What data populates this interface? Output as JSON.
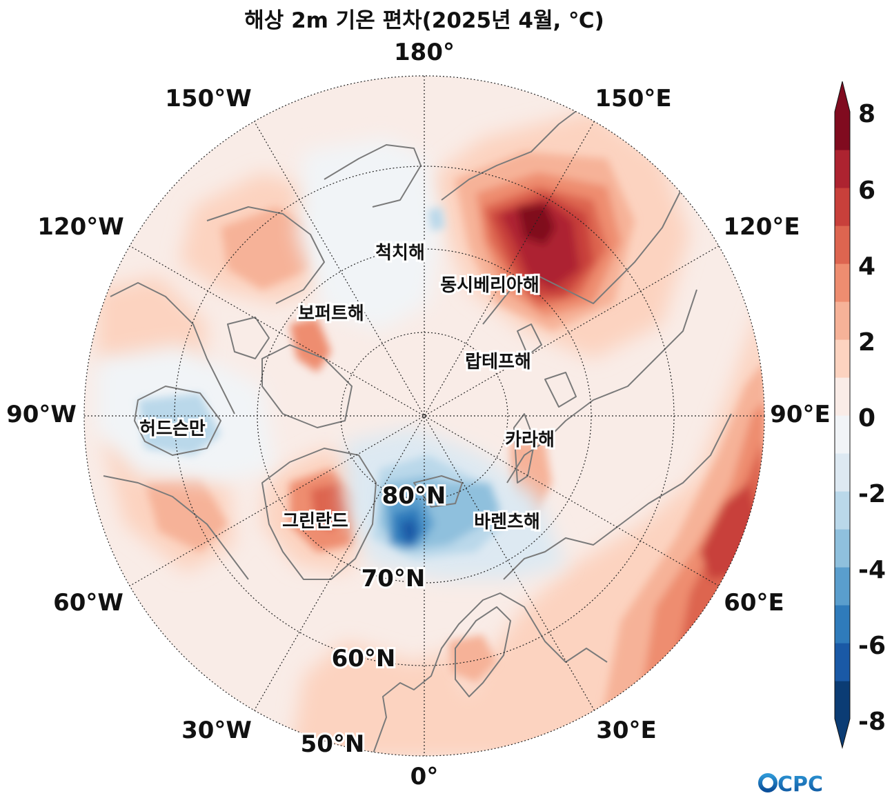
{
  "title": "해상 2m 기온 편차(2025년 4월, ℃)",
  "longitude_labels": {
    "lon_180": "180°",
    "lon_150w": "150°W",
    "lon_150e": "150°E",
    "lon_120w": "120°W",
    "lon_120e": "120°E",
    "lon_90w": "90°W",
    "lon_90e": "90°E",
    "lon_60w": "60°W",
    "lon_60e": "60°E",
    "lon_30w": "30°W",
    "lon_30e": "30°E",
    "lon_0": "0°"
  },
  "latitude_labels": {
    "lat_80": "80°N",
    "lat_70": "70°N",
    "lat_60": "60°N",
    "lat_50": "50°N"
  },
  "regions": {
    "chukchi": "척치해",
    "east_siberian": "동시베리아해",
    "beaufort": "보퍼트해",
    "laptev": "랍테프해",
    "hudson": "허드슨만",
    "kara": "카라해",
    "greenland": "그린란드",
    "barents": "바렌츠해"
  },
  "colorbar": {
    "ticks": [
      "8",
      "6",
      "4",
      "2",
      "0",
      "-2",
      "-4",
      "-6",
      "-8"
    ],
    "levels_min": -8,
    "levels_max": 8,
    "colors": [
      "#0b3c74",
      "#1a59a6",
      "#2f7bbb",
      "#5a9ecd",
      "#8fc0dd",
      "#bad8ea",
      "#dde9f2",
      "#f1f4f7",
      "#f9ece7",
      "#fcd3c0",
      "#f6b298",
      "#ee8d70",
      "#dd6550",
      "#c8403b",
      "#ad2330",
      "#800b1f"
    ]
  },
  "logo": "CPC",
  "chart_data": {
    "type": "heatmap",
    "projection": "north polar stereographic",
    "variable": "2m temperature anomaly",
    "unit": "℃",
    "color_range": [
      -8,
      8
    ],
    "latitude_circles": [
      80,
      70,
      60,
      50
    ],
    "longitude_lines": [
      0,
      30,
      60,
      90,
      120,
      150,
      180,
      -150,
      -120,
      -90,
      -60,
      -30
    ],
    "anomaly_features": [
      {
        "location": "East Siberian Sea / NE Siberia (~140°E, 70°N)",
        "value": 7.5
      },
      {
        "location": "Siberian coast (~125°E, 65°N)",
        "value": 5
      },
      {
        "location": "West Siberia / Urals (~70°E, 55°N)",
        "value": 5.5
      },
      {
        "location": "NE Europe (~50°E, 55°N)",
        "value": 3.5
      },
      {
        "location": "Alaska / W Canada (~135°W, 62°N)",
        "value": 2.5
      },
      {
        "location": "NE Greenland (~30°W, 75°N)",
        "value": 4.5
      },
      {
        "location": "Beaufort Sea coast (~120°W, 72°N)",
        "value": 4
      },
      {
        "location": "Kara Sea (~70°E, 75°N)",
        "value": 3
      },
      {
        "location": "Svalbard / Fram Strait (~10°E, 79°N)",
        "value": -6.5
      },
      {
        "location": "Barents Sea (~30°E, 75°N)",
        "value": -3
      },
      {
        "location": "Hudson Bay (~85°W, 60°N)",
        "value": -1.5
      },
      {
        "location": "Central Arctic Ocean",
        "value": 0.5
      }
    ]
  }
}
